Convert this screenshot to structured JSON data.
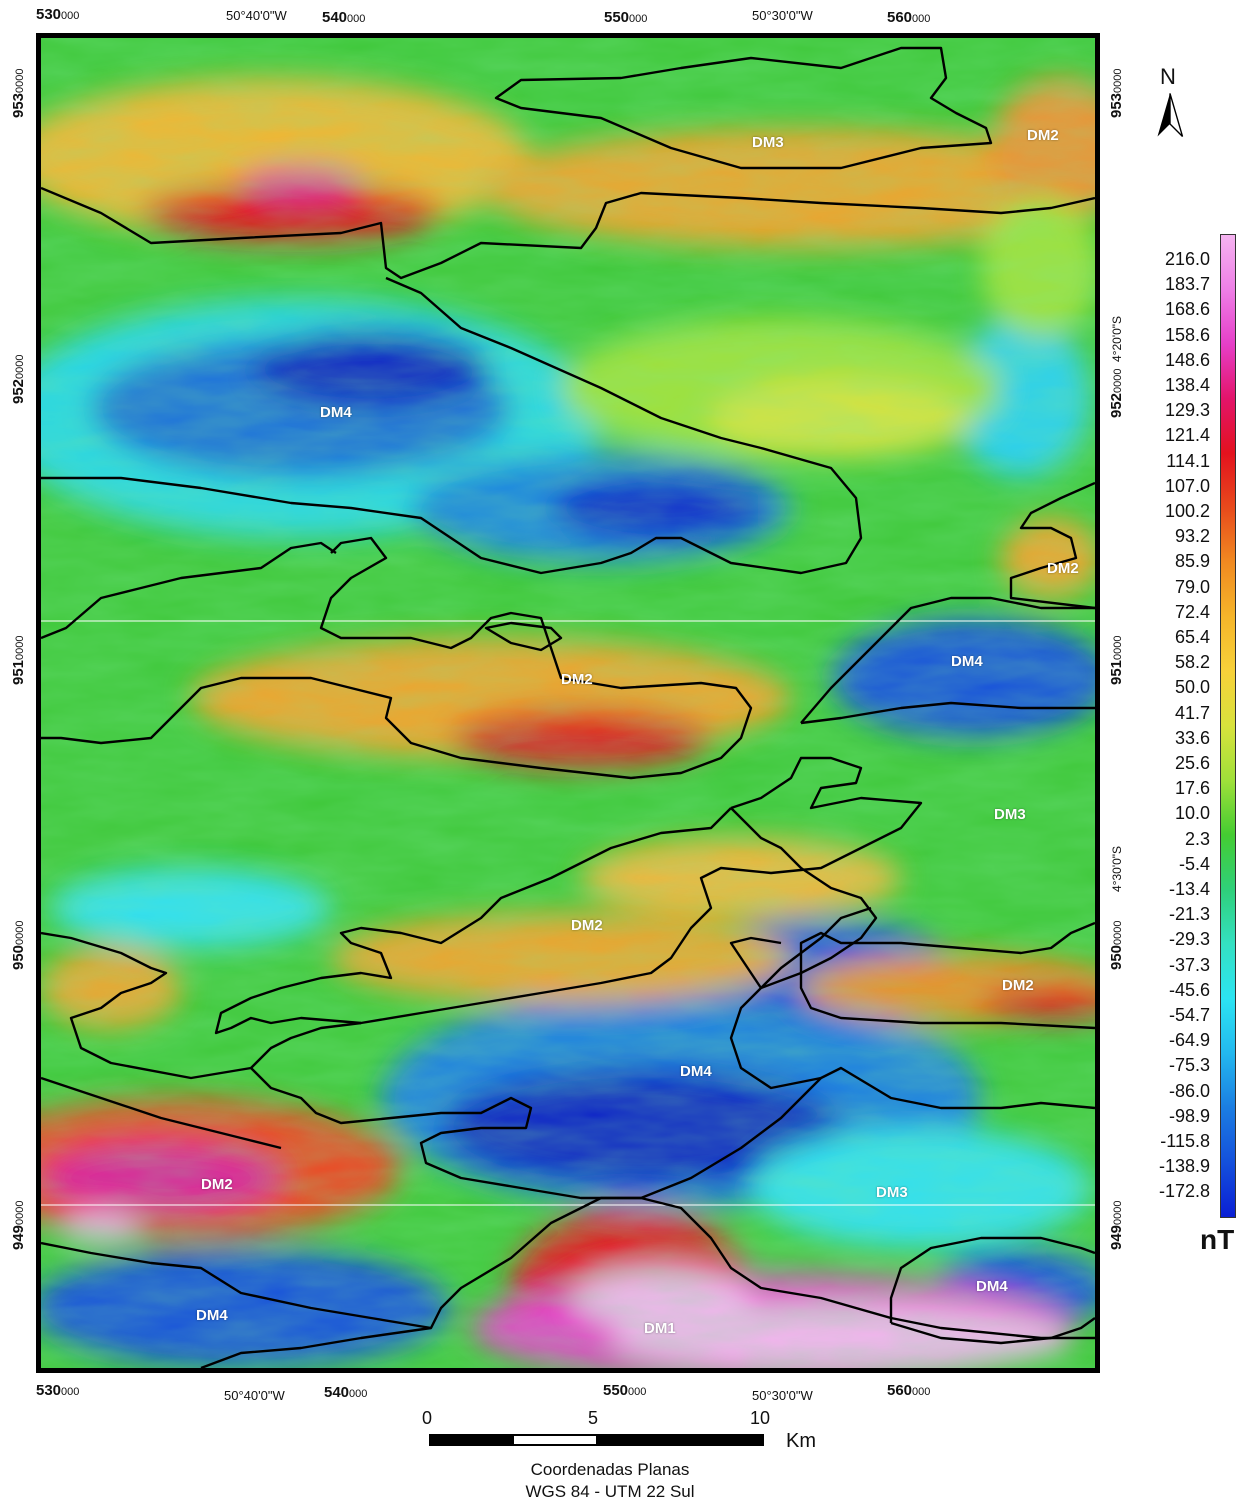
{
  "map": {
    "top_utm_labels": [
      {
        "main": "530",
        "sub": "000"
      },
      {
        "main": "540",
        "sub": "000"
      },
      {
        "main": "550",
        "sub": "000"
      },
      {
        "main": "560",
        "sub": "000"
      }
    ],
    "bottom_utm_labels": [
      {
        "main": "530",
        "sub": "000"
      },
      {
        "main": "540",
        "sub": "000"
      },
      {
        "main": "550",
        "sub": "000"
      },
      {
        "main": "560",
        "sub": "000"
      }
    ],
    "top_geo_labels": [
      "50°40'0\"W",
      "50°30'0\"W"
    ],
    "bottom_geo_labels": [
      "50°40'0\"W",
      "50°30'0\"W"
    ],
    "left_utm_labels": [
      {
        "main": "953",
        "sub": "0000"
      },
      {
        "main": "952",
        "sub": "0000"
      },
      {
        "main": "951",
        "sub": "0000"
      },
      {
        "main": "950",
        "sub": "0000"
      },
      {
        "main": "949",
        "sub": "0000"
      }
    ],
    "right_utm_labels": [
      {
        "main": "953",
        "sub": "0000"
      },
      {
        "main": "952",
        "sub": "0000"
      },
      {
        "main": "951",
        "sub": "0000"
      },
      {
        "main": "950",
        "sub": "0000"
      },
      {
        "main": "949",
        "sub": "0000"
      }
    ],
    "right_geo_labels": [
      "4°20'0\"S",
      "4°30'0\"S"
    ],
    "domains": [
      "DM3",
      "DM2",
      "DM4",
      "DM2",
      "DM4",
      "DM2",
      "DM3",
      "DM2",
      "DM2",
      "DM4",
      "DM2",
      "DM3",
      "DM4",
      "DM4",
      "DM1"
    ]
  },
  "north_arrow": {
    "label": "N"
  },
  "legend": {
    "values": [
      "216.0",
      "183.7",
      "168.6",
      "158.6",
      "148.6",
      "138.4",
      "129.3",
      "121.4",
      "114.1",
      "107.0",
      "100.2",
      "93.2",
      "85.9",
      "79.0",
      "72.4",
      "65.4",
      "58.2",
      "50.0",
      "41.7",
      "33.6",
      "25.6",
      "17.6",
      "10.0",
      "2.3",
      "-5.4",
      "-13.4",
      "-21.3",
      "-29.3",
      "-37.3",
      "-45.6",
      "-54.7",
      "-64.9",
      "-75.3",
      "-86.0",
      "-98.9",
      "-115.8",
      "-138.9",
      "-172.8"
    ],
    "unit": "nT",
    "colors": [
      "#f5b3f0",
      "#ee7fe6",
      "#e63fc8",
      "#e3146a",
      "#e3121e",
      "#e84a1c",
      "#f08a21",
      "#f5b52a",
      "#f7d13a",
      "#d8e23c",
      "#9fe03a",
      "#44cc32",
      "#2fd07a",
      "#34e0c2",
      "#2ce4f2",
      "#23b8ef",
      "#1b7de2",
      "#1450dc",
      "#0a1fd4"
    ]
  },
  "scale": {
    "ticks": [
      "0",
      "5",
      "10"
    ],
    "unit": "Km"
  },
  "credits": [
    "Coordenadas Planas",
    "WGS 84 - UTM 22 Sul"
  ]
}
